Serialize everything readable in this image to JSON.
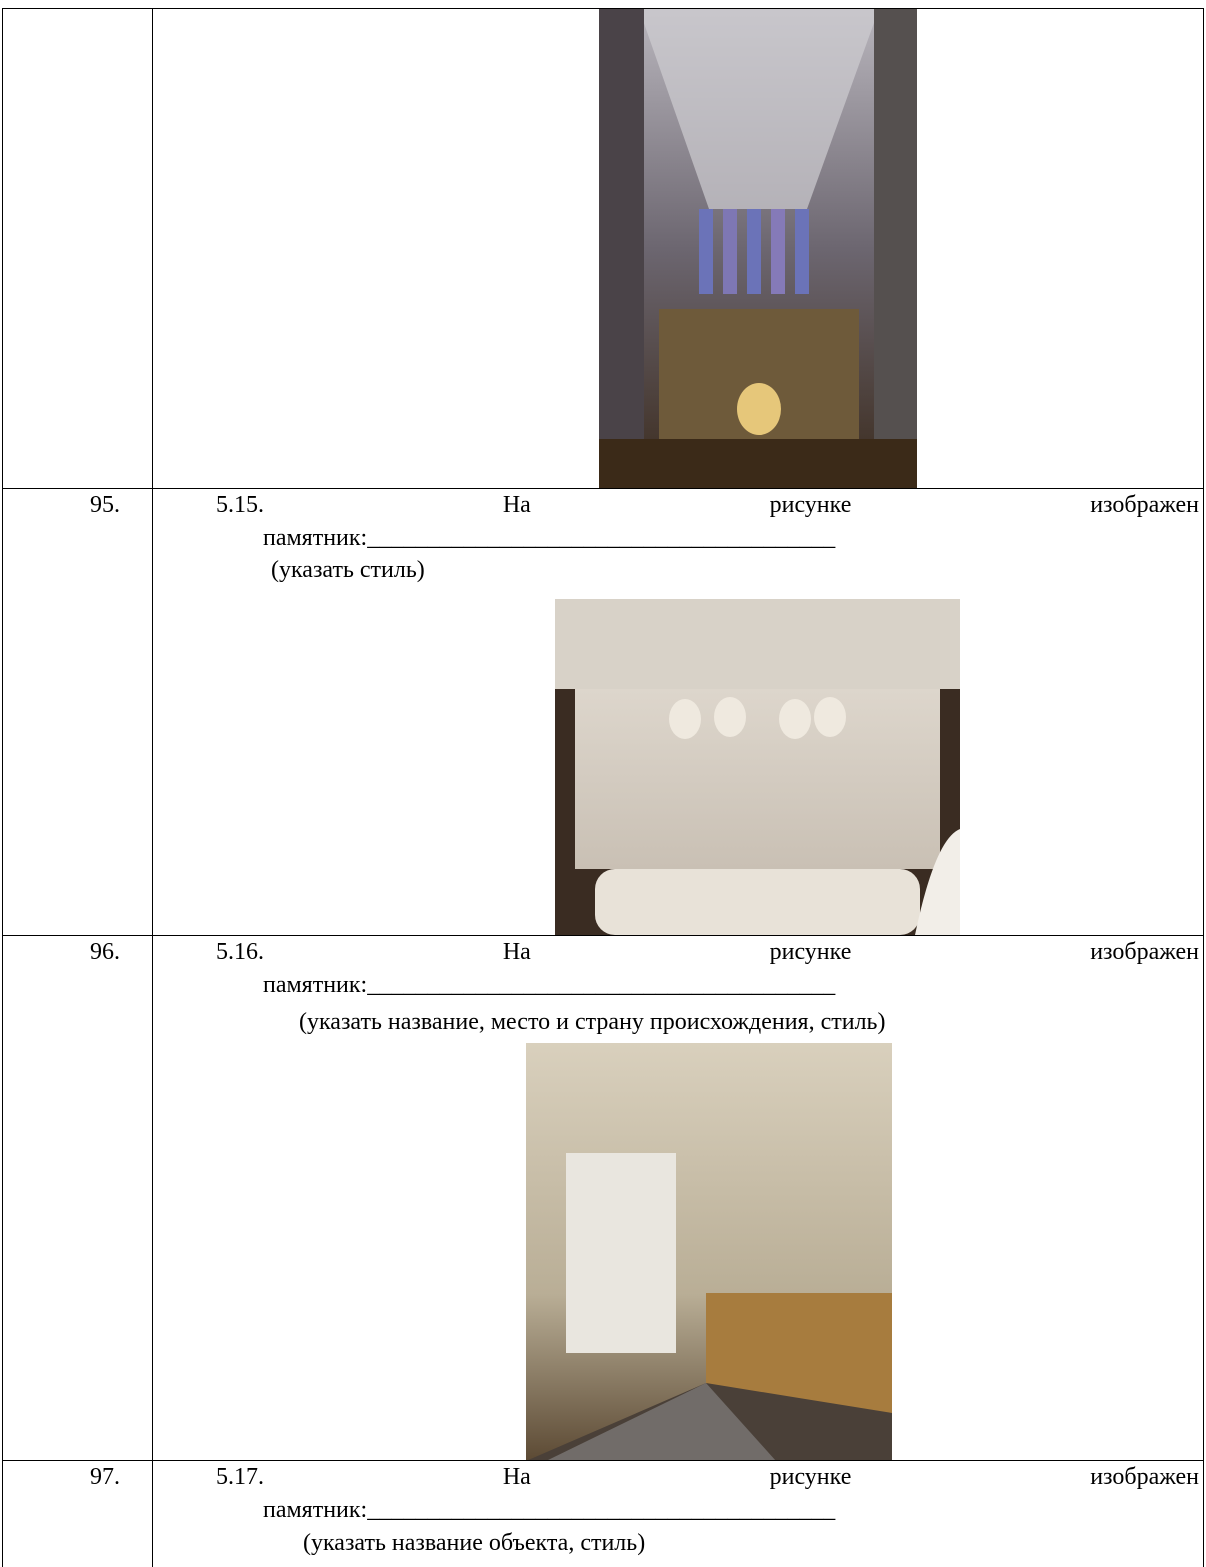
{
  "table": {
    "rows": [
      {
        "number": null,
        "heading": null,
        "blank": null,
        "note": null
      },
      {
        "number": "95.",
        "heading": "5.15. На рисунке изображен",
        "blank": "памятник:_______________________________________",
        "note": "(указать стиль)"
      },
      {
        "number": "96.",
        "heading": "5.16. На рисунке изображен",
        "blank": "памятник:_______________________________________",
        "note": "(указать название, место и страну происхождения, стиль)"
      },
      {
        "number": "97.",
        "heading": "5.17. На рисунке изображен",
        "blank": "памятник:_______________________________________",
        "note": "(указать название объекта, стиль)"
      }
    ]
  }
}
